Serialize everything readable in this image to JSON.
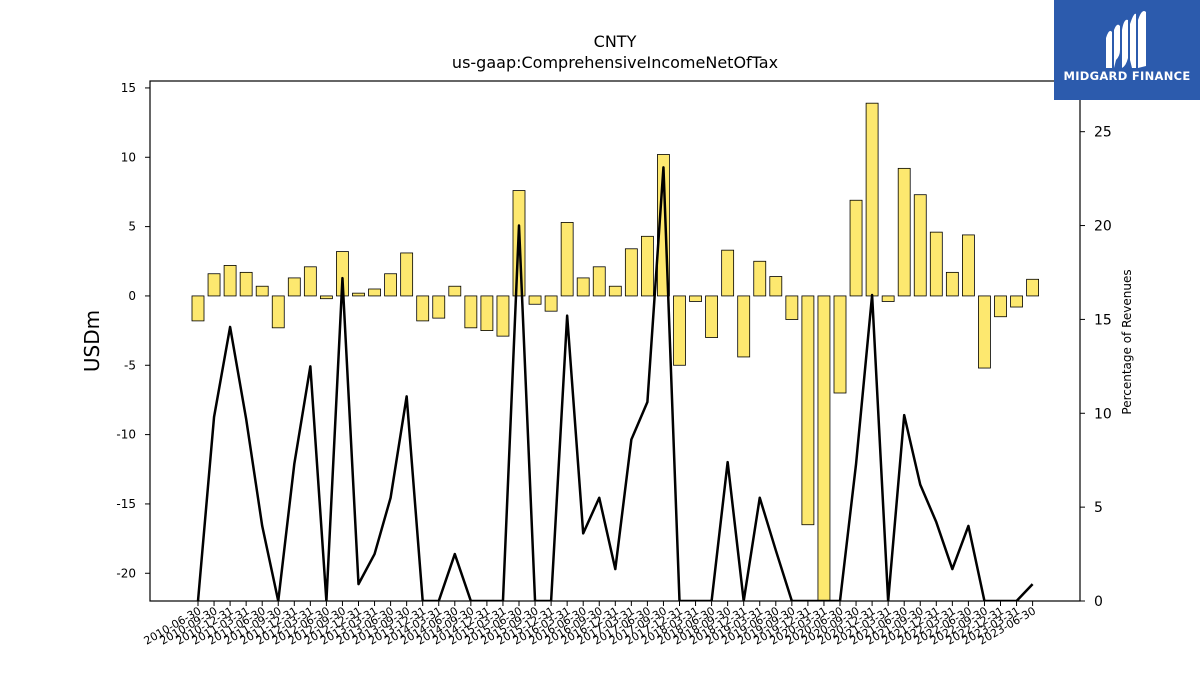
{
  "title": "CNTY",
  "subtitle": "us-gaap:ComprehensiveIncomeNetOfTax",
  "brand": {
    "name": "MIDGARD FINANCE",
    "color": "#2c5bad",
    "icon": "midgard-logo-icon"
  },
  "colors": {
    "bar_fill": "#fde86f",
    "bar_edge": "#000000",
    "line": "#000000"
  },
  "chart_data": {
    "type": "bar",
    "xlabel": "",
    "ylabel": "USDm",
    "y2label": "Percentage of Revenues",
    "ylim": [
      -22,
      15.5
    ],
    "y2lim": [
      0,
      27.7
    ],
    "yticks": [
      15,
      10,
      5,
      0,
      -5,
      -10,
      -15,
      -20
    ],
    "y2ticks": [
      25,
      20,
      15,
      10,
      5,
      0
    ],
    "grid": false,
    "categories": [
      "2010-06-30",
      "2010-09-30",
      "2010-12-31",
      "2011-03-31",
      "2011-06-30",
      "2011-09-30",
      "2011-12-31",
      "2012-03-31",
      "2012-06-30",
      "2012-09-30",
      "2012-12-31",
      "2013-03-31",
      "2013-06-30",
      "2013-09-30",
      "2013-12-31",
      "2014-03-31",
      "2014-06-30",
      "2014-09-30",
      "2014-12-31",
      "2015-03-31",
      "2015-06-30",
      "2015-09-30",
      "2015-12-31",
      "2016-03-31",
      "2016-06-30",
      "2016-09-30",
      "2016-12-31",
      "2017-03-31",
      "2017-06-30",
      "2017-09-30",
      "2017-12-31",
      "2018-03-31",
      "2018-06-30",
      "2018-09-30",
      "2018-12-31",
      "2019-03-31",
      "2019-06-30",
      "2019-09-30",
      "2019-12-31",
      "2020-03-31",
      "2020-06-30",
      "2020-09-30",
      "2020-12-31",
      "2021-03-31",
      "2021-06-30",
      "2021-09-30",
      "2021-12-31",
      "2022-03-31",
      "2022-06-30",
      "2022-09-30",
      "2022-12-31",
      "2023-03-31",
      "2023-06-30"
    ],
    "tick_labels": [
      "2010-06-30",
      "2010-09-30",
      "2010-12-31",
      "2011-03-31",
      "2011-06-30",
      "2011-09-30",
      "2011-12-31",
      "2012-03-31",
      "2012-06-30",
      "2012-09-30",
      "2012-12-31",
      "2013-03-31",
      "2013-06-30",
      "2013-09-30",
      "2013-12-31",
      "2014-03-31",
      "2014-06-30",
      "2014-09-30",
      "2014-12-31",
      "2015-03-31",
      "2015-06-30",
      "2015-09-30",
      "2015-12-31",
      "2016-03-31",
      "2016-06-30",
      "2016-09-30",
      "2016-12-31",
      "2017-03-31",
      "2017-06-30",
      "2017-09-30",
      "2017-12-31",
      "2018-03-31",
      "2018-06-30",
      "2018-09-30",
      "2018-12-31",
      "2019-03-31",
      "2019-06-30",
      "2019-09-30",
      "2019-12-31",
      "2020-03-31",
      "2020-06-30",
      "2020-09-30",
      "2020-12-31",
      "2021-03-31",
      "2021-06-30",
      "2021-09-30",
      "2021-12-31",
      "2022-03-31",
      "2022-06-30",
      "2022-09-30",
      "2022-12-31",
      "2023-03-31",
      "2023-06-30"
    ],
    "series": [
      {
        "type": "bar",
        "axis": "left",
        "values": [
          -1.8,
          1.6,
          2.2,
          1.7,
          0.7,
          -2.3,
          1.3,
          2.1,
          -0.2,
          3.2,
          0.2,
          0.5,
          1.6,
          3.1,
          -1.8,
          -1.6,
          0.7,
          -2.3,
          -2.5,
          -2.9,
          7.6,
          -0.6,
          -1.1,
          5.3,
          1.3,
          2.1,
          0.7,
          3.4,
          4.3,
          10.2,
          -5.0,
          -0.4,
          -3.0,
          3.3,
          -4.4,
          2.5,
          1.4,
          -1.7,
          -16.5,
          -22.0,
          -7.0,
          6.9,
          13.9,
          -0.4,
          9.2,
          7.3,
          4.6,
          1.7,
          4.4,
          -5.2,
          -1.5,
          -0.8,
          1.2
        ]
      },
      {
        "type": "line",
        "axis": "right",
        "values": [
          0,
          9.8,
          14.6,
          9.7,
          4.0,
          0,
          7.3,
          12.5,
          0,
          17.2,
          0.9,
          2.5,
          5.5,
          10.9,
          0,
          0,
          2.5,
          0,
          0,
          0,
          20.0,
          0,
          0,
          15.2,
          3.6,
          5.5,
          1.7,
          8.6,
          10.6,
          23.1,
          0,
          0,
          0,
          7.4,
          0,
          5.5,
          2.7,
          0,
          0,
          0,
          0,
          7.3,
          16.3,
          0,
          9.9,
          6.2,
          4.2,
          1.7,
          4.0,
          0,
          0,
          0,
          0.9
        ]
      }
    ]
  }
}
